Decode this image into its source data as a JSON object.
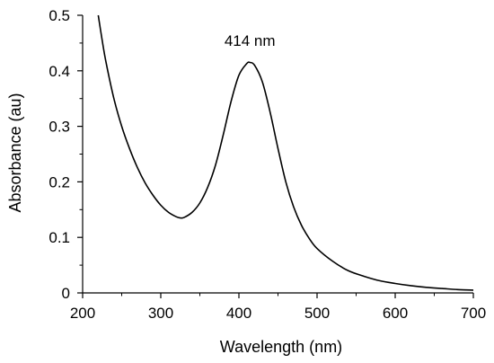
{
  "chart_data": {
    "type": "line",
    "title": "",
    "xlabel": "Wavelength (nm)",
    "ylabel": "Absorbance (au)",
    "xlim": [
      200,
      700
    ],
    "ylim": [
      0,
      0.5
    ],
    "x_ticks": [
      200,
      300,
      400,
      500,
      600,
      700
    ],
    "x_tick_labels": [
      "200",
      "300",
      "400",
      "500",
      "600",
      "700"
    ],
    "y_ticks": [
      0,
      0.1,
      0.2,
      0.3,
      0.4,
      0.5
    ],
    "y_tick_labels": [
      "0",
      "0.1",
      "0.2",
      "0.3",
      "0.4",
      "0.5"
    ],
    "grid": false,
    "legend": "none",
    "annotations": [
      {
        "text": "414 nm",
        "x": 414,
        "y": 0.455
      }
    ],
    "series": [
      {
        "color": "#000000",
        "x": [
          220,
          225,
          230,
          240,
          250,
          260,
          270,
          280,
          290,
          300,
          310,
          320,
          325,
          330,
          340,
          350,
          360,
          370,
          380,
          390,
          400,
          410,
          414,
          420,
          430,
          440,
          450,
          460,
          470,
          480,
          490,
          500,
          520,
          540,
          560,
          580,
          600,
          620,
          640,
          660,
          680,
          700
        ],
        "y": [
          0.5,
          0.455,
          0.415,
          0.35,
          0.3,
          0.26,
          0.226,
          0.198,
          0.176,
          0.158,
          0.145,
          0.137,
          0.135,
          0.136,
          0.145,
          0.162,
          0.19,
          0.23,
          0.285,
          0.345,
          0.392,
          0.413,
          0.415,
          0.41,
          0.38,
          0.325,
          0.26,
          0.2,
          0.155,
          0.122,
          0.098,
          0.08,
          0.057,
          0.04,
          0.03,
          0.022,
          0.017,
          0.013,
          0.01,
          0.008,
          0.006,
          0.005
        ]
      }
    ]
  }
}
